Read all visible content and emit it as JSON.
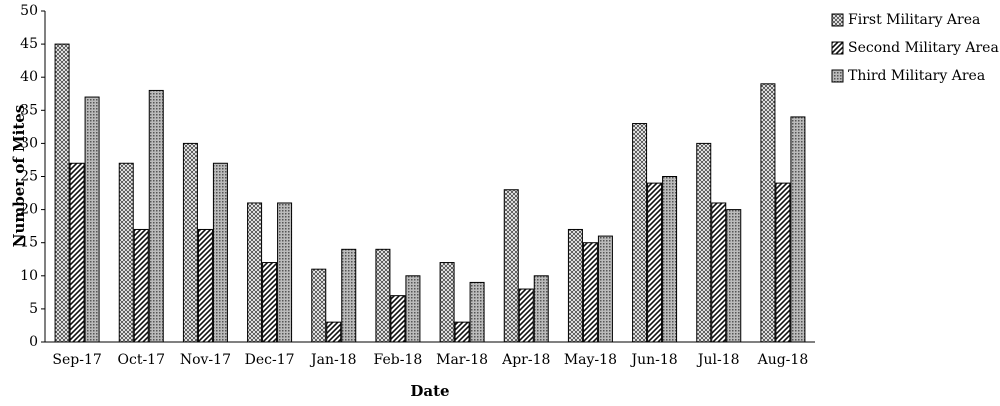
{
  "chart_data": {
    "type": "bar",
    "x_label": "Date",
    "y_label": "Number of Mites",
    "categories": [
      "Sep-17",
      "Oct-17",
      "Nov-17",
      "Dec-17",
      "Jan-18",
      "Feb-18",
      "Mar-18",
      "Apr-18",
      "May-18",
      "Jun-18",
      "Jul-18",
      "Aug-18"
    ],
    "series": [
      {
        "name": "First Military Area",
        "color": "#444444",
        "pattern": "crosshatch",
        "values": [
          45,
          27,
          30,
          21,
          11,
          14,
          12,
          23,
          17,
          33,
          30,
          39
        ]
      },
      {
        "name": "Second Military Area",
        "color": "#111111",
        "pattern": "diagonal",
        "values": [
          27,
          17,
          17,
          12,
          3,
          7,
          3,
          8,
          15,
          24,
          21,
          24
        ]
      },
      {
        "name": "Third Military Area",
        "color": "#555555",
        "pattern": "dots",
        "values": [
          37,
          38,
          27,
          21,
          14,
          10,
          9,
          10,
          16,
          25,
          20,
          34
        ]
      }
    ],
    "ylim": [
      0,
      50
    ],
    "yticks": [
      0,
      5,
      10,
      15,
      20,
      25,
      30,
      35,
      40,
      45,
      50
    ],
    "legend": "right",
    "grid": false
  }
}
